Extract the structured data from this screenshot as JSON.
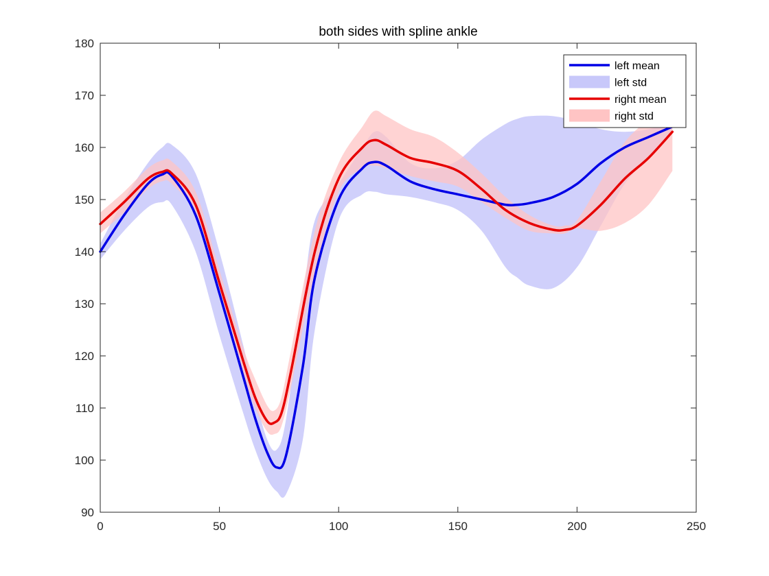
{
  "chart_data": {
    "type": "line",
    "title": "both sides with spline ankle",
    "xlabel": "",
    "ylabel": "",
    "xlim": [
      0,
      250
    ],
    "ylim": [
      90,
      180
    ],
    "xticks": [
      0,
      50,
      100,
      150,
      200,
      250
    ],
    "yticks": [
      90,
      100,
      110,
      120,
      130,
      140,
      150,
      160,
      170,
      180
    ],
    "grid": false,
    "legend_position": "top-right",
    "colors": {
      "left": "#0000e6",
      "left_band": "#c8c8fa",
      "right": "#e60000",
      "right_band": "#ffc4c4"
    },
    "legend": [
      {
        "label": "left mean",
        "kind": "line",
        "series": "left"
      },
      {
        "label": "left std",
        "kind": "band",
        "series": "left"
      },
      {
        "label": "right mean",
        "kind": "line",
        "series": "right"
      },
      {
        "label": "right std",
        "kind": "band",
        "series": "right"
      }
    ],
    "series": [
      {
        "key": "left",
        "x": [
          0,
          10,
          20,
          26,
          30,
          40,
          50,
          60,
          65,
          70,
          74,
          78,
          85,
          90,
          100,
          110,
          115,
          120,
          130,
          140,
          150,
          160,
          170,
          175,
          180,
          190,
          200,
          210,
          220,
          230,
          240
        ],
        "mean": [
          140,
          147,
          153,
          154.8,
          154.5,
          147,
          132,
          116,
          108,
          101.5,
          98.6,
          101,
          118,
          135,
          150,
          156,
          157.2,
          156.5,
          153.5,
          152,
          151,
          150,
          149,
          149,
          149.3,
          150.5,
          153,
          157,
          160,
          162,
          164
        ],
        "lower": [
          138.5,
          144,
          148.5,
          149.5,
          149,
          140,
          124,
          109,
          102,
          96.5,
          94,
          93.5,
          104,
          125,
          146,
          151,
          151.5,
          151,
          150.5,
          149.5,
          148,
          144,
          137,
          135,
          133.5,
          133,
          137,
          145,
          153,
          158,
          163
        ],
        "upper": [
          141.5,
          150,
          157,
          160,
          160.5,
          155,
          140,
          122,
          112,
          104,
          102,
          108,
          131,
          146,
          153,
          160,
          163,
          162,
          157,
          156,
          157.5,
          161.5,
          164.5,
          165.5,
          166,
          166,
          165,
          163.5,
          163,
          163.5,
          165
        ]
      },
      {
        "key": "right",
        "x": [
          0,
          10,
          20,
          26,
          30,
          40,
          50,
          60,
          65,
          70,
          73,
          76,
          80,
          90,
          100,
          110,
          115,
          120,
          130,
          140,
          150,
          160,
          170,
          180,
          190,
          195,
          200,
          210,
          220,
          230,
          240
        ],
        "mean": [
          145.3,
          149.5,
          154,
          155.3,
          155,
          149,
          134,
          119,
          112,
          107.5,
          107.2,
          109,
          117,
          140,
          154,
          160,
          161.4,
          160.5,
          158,
          157,
          155.5,
          152,
          148,
          145.5,
          144.2,
          144.2,
          145,
          149,
          154,
          158,
          163
        ],
        "lower": [
          143.5,
          147.5,
          152,
          153.5,
          153,
          147,
          132,
          116.5,
          110,
          105.5,
          105,
          106.5,
          114,
          136,
          151.5,
          156,
          156.5,
          156,
          154.5,
          153.5,
          152.5,
          149.5,
          146.5,
          144,
          143.5,
          143.5,
          144.5,
          144,
          145.5,
          149,
          155.5
        ],
        "upper": [
          147.5,
          151.5,
          156,
          157.5,
          157.3,
          151.5,
          136.5,
          121.5,
          115.5,
          110.5,
          109.5,
          112,
          121,
          144,
          157,
          164,
          167,
          166,
          163.5,
          162,
          159,
          155,
          150.5,
          147,
          145,
          145,
          146,
          153.5,
          161,
          165.5,
          170
        ]
      }
    ]
  }
}
